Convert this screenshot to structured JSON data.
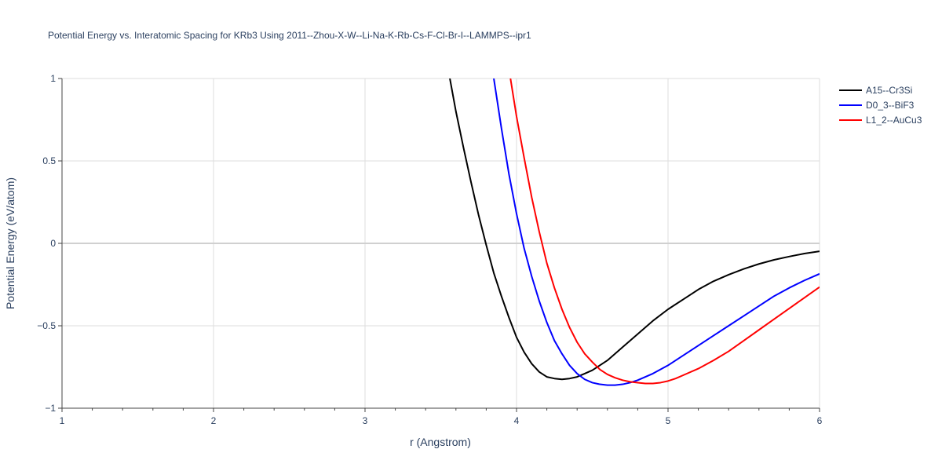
{
  "chart_data": {
    "type": "line",
    "title": "Potential Energy vs. Interatomic Spacing for KRb3 Using 2011--Zhou-X-W--Li-Na-K-Rb-Cs-F-Cl-Br-I--LAMMPS--ipr1",
    "xlabel": "r (Angstrom)",
    "ylabel": "Potential Energy (eV/atom)",
    "xlim": [
      1,
      6
    ],
    "ylim": [
      -1,
      1
    ],
    "xticks": [
      1,
      2,
      3,
      4,
      5,
      6
    ],
    "xtick_labels": [
      "1",
      "2",
      "3",
      "4",
      "5",
      "6"
    ],
    "yticks": [
      -1,
      -0.5,
      0,
      0.5,
      1
    ],
    "ytick_labels": [
      "−1",
      "−0.5",
      "0",
      "0.5",
      "1"
    ],
    "grid": true,
    "legend_position": "top-right",
    "series": [
      {
        "name": "A15--Cr3Si",
        "color": "#000000",
        "x": [
          3.56,
          3.6,
          3.65,
          3.7,
          3.75,
          3.8,
          3.85,
          3.9,
          3.95,
          4.0,
          4.05,
          4.1,
          4.15,
          4.2,
          4.25,
          4.3,
          4.35,
          4.4,
          4.45,
          4.5,
          4.6,
          4.7,
          4.8,
          4.9,
          5.0,
          5.1,
          5.2,
          5.3,
          5.4,
          5.5,
          5.6,
          5.7,
          5.8,
          5.9,
          6.0
        ],
        "values": [
          1.0,
          0.8,
          0.58,
          0.37,
          0.17,
          -0.01,
          -0.18,
          -0.32,
          -0.45,
          -0.57,
          -0.66,
          -0.73,
          -0.78,
          -0.81,
          -0.82,
          -0.825,
          -0.82,
          -0.81,
          -0.79,
          -0.77,
          -0.71,
          -0.63,
          -0.55,
          -0.47,
          -0.4,
          -0.34,
          -0.28,
          -0.23,
          -0.19,
          -0.155,
          -0.125,
          -0.1,
          -0.08,
          -0.062,
          -0.048
        ]
      },
      {
        "name": "D0_3--BiF3",
        "color": "#0000ff",
        "x": [
          3.85,
          3.9,
          3.95,
          4.0,
          4.05,
          4.1,
          4.15,
          4.2,
          4.25,
          4.3,
          4.35,
          4.4,
          4.45,
          4.5,
          4.55,
          4.6,
          4.65,
          4.7,
          4.75,
          4.8,
          4.9,
          5.0,
          5.1,
          5.2,
          5.3,
          5.4,
          5.5,
          5.6,
          5.7,
          5.8,
          5.9,
          6.0
        ],
        "values": [
          1.0,
          0.7,
          0.42,
          0.18,
          -0.03,
          -0.2,
          -0.35,
          -0.48,
          -0.59,
          -0.67,
          -0.74,
          -0.79,
          -0.825,
          -0.845,
          -0.855,
          -0.86,
          -0.86,
          -0.855,
          -0.845,
          -0.83,
          -0.79,
          -0.74,
          -0.68,
          -0.62,
          -0.56,
          -0.5,
          -0.44,
          -0.38,
          -0.32,
          -0.27,
          -0.225,
          -0.185
        ]
      },
      {
        "name": "L1_2--AuCu3",
        "color": "#ff0000",
        "x": [
          3.96,
          4.0,
          4.05,
          4.1,
          4.15,
          4.2,
          4.25,
          4.3,
          4.35,
          4.4,
          4.45,
          4.5,
          4.55,
          4.6,
          4.65,
          4.7,
          4.75,
          4.8,
          4.85,
          4.9,
          4.95,
          5.0,
          5.05,
          5.1,
          5.2,
          5.3,
          5.4,
          5.5,
          5.6,
          5.7,
          5.8,
          5.9,
          6.0
        ],
        "values": [
          1.0,
          0.77,
          0.52,
          0.28,
          0.07,
          -0.12,
          -0.27,
          -0.4,
          -0.51,
          -0.6,
          -0.67,
          -0.72,
          -0.765,
          -0.795,
          -0.815,
          -0.83,
          -0.84,
          -0.845,
          -0.85,
          -0.85,
          -0.845,
          -0.835,
          -0.82,
          -0.8,
          -0.76,
          -0.71,
          -0.655,
          -0.59,
          -0.525,
          -0.46,
          -0.395,
          -0.33,
          -0.265
        ]
      }
    ]
  }
}
